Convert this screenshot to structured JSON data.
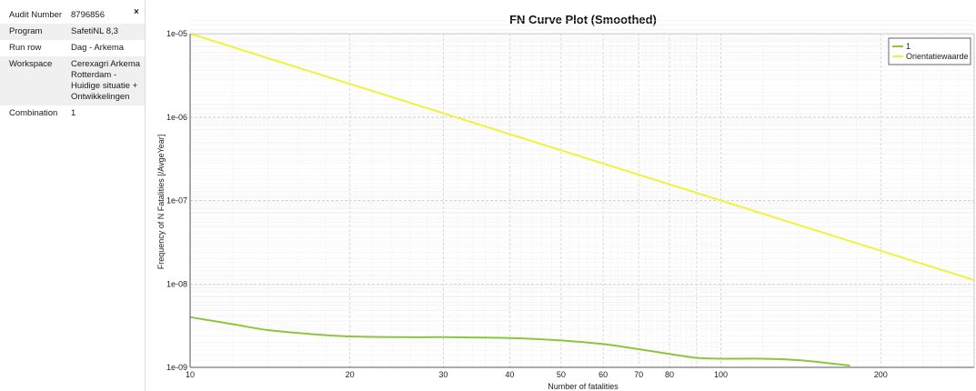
{
  "properties": {
    "close_glyph": "×",
    "rows": [
      {
        "key": "Audit Number",
        "value": [
          "8796856"
        ]
      },
      {
        "key": "Program",
        "value": [
          "SafetiNL 8,3"
        ]
      },
      {
        "key": "Run row",
        "value": [
          "Dag - Arkema"
        ]
      },
      {
        "key": "Workspace",
        "value": [
          "Cerexagri Arkema",
          "Rotterdam -",
          "Huidige situatie +",
          "Ontwikkelingen"
        ]
      },
      {
        "key": "Combination",
        "value": [
          "1"
        ]
      }
    ]
  },
  "colors": {
    "series_1": "#8cc63f",
    "orientatiewaarde": "#f2f23a",
    "grid_major": "#c8c8c8",
    "grid_minor": "#e6e6e6",
    "axis": "#555555"
  },
  "chart_data": {
    "type": "line",
    "title": "FN Curve Plot (Smoothed)",
    "xlabel": "Number of fatalities",
    "ylabel": "Frequency of N Fatalities [/AvgeYear]",
    "xscale": "log",
    "yscale": "log",
    "xlim": [
      10,
      300
    ],
    "ylim": [
      1e-09,
      1e-05
    ],
    "x_ticks": [
      10,
      20,
      30,
      40,
      50,
      60,
      70,
      80,
      100,
      200
    ],
    "y_ticks": [
      1e-09,
      1e-08,
      1e-07,
      1e-06,
      1e-05
    ],
    "y_tick_labels": [
      "1e-09",
      "1e-08",
      "1e-07",
      "1e-06",
      "1e-05"
    ],
    "grid": true,
    "legend_position": "top-right",
    "series": [
      {
        "name": "1",
        "color": "#8cc63f",
        "points": [
          [
            10,
            4e-09
          ],
          [
            12,
            3.3e-09
          ],
          [
            14,
            2.8e-09
          ],
          [
            17,
            2.5e-09
          ],
          [
            20,
            2.35e-09
          ],
          [
            25,
            2.3e-09
          ],
          [
            30,
            2.3e-09
          ],
          [
            40,
            2.25e-09
          ],
          [
            50,
            2.1e-09
          ],
          [
            60,
            1.9e-09
          ],
          [
            70,
            1.65e-09
          ],
          [
            80,
            1.45e-09
          ],
          [
            90,
            1.3e-09
          ],
          [
            100,
            1.27e-09
          ],
          [
            120,
            1.27e-09
          ],
          [
            140,
            1.22e-09
          ],
          [
            160,
            1.12e-09
          ],
          [
            175,
            1.05e-09
          ]
        ]
      },
      {
        "name": "Orientatiewaarde",
        "color": "#f2f23a",
        "points": [
          [
            10,
            1e-05
          ],
          [
            300,
            1.11e-08
          ]
        ]
      }
    ]
  }
}
